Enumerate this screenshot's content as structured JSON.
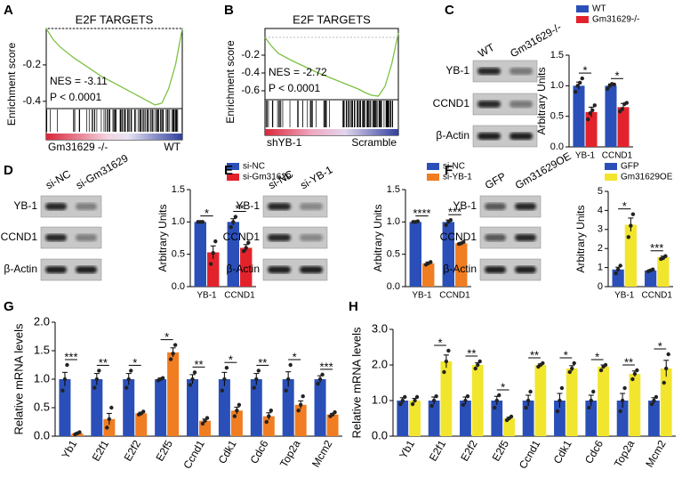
{
  "chart_data": [
    {
      "panel": "A",
      "type": "line",
      "title": "E2F TARGETS",
      "ylabel": "Enrichment score",
      "annotations": [
        "NES = -3.11",
        "P < 0.0001"
      ],
      "left_label": "Gm31629 -/-",
      "right_label": "WT",
      "color": "#7cc242",
      "x": [
        0,
        5,
        10,
        20,
        30,
        40,
        50,
        60,
        70,
        75,
        80,
        85,
        90,
        95,
        100
      ],
      "values": [
        0,
        -0.06,
        -0.1,
        -0.16,
        -0.21,
        -0.26,
        -0.3,
        -0.34,
        -0.38,
        -0.4,
        -0.42,
        -0.41,
        -0.33,
        -0.2,
        0
      ],
      "xlim": [
        0,
        100
      ],
      "ylim": [
        -0.44,
        0
      ],
      "yticks": [
        -0.2,
        -0.4
      ]
    },
    {
      "panel": "B",
      "type": "line",
      "title": "E2F TARGETS",
      "ylabel": "Enrichment score",
      "annotations": [
        "NES = -2.72",
        "P < 0.0001"
      ],
      "left_label": "shYB-1",
      "right_label": "Scramble",
      "color": "#7cc242",
      "x": [
        0,
        5,
        10,
        20,
        30,
        40,
        50,
        60,
        70,
        75,
        80,
        85,
        90,
        95,
        100
      ],
      "values": [
        0,
        -0.1,
        -0.18,
        -0.26,
        -0.33,
        -0.4,
        -0.46,
        -0.52,
        -0.58,
        -0.62,
        -0.65,
        -0.66,
        -0.55,
        -0.3,
        0.05
      ],
      "xlim": [
        0,
        100
      ],
      "ylim": [
        -0.7,
        0.1
      ],
      "yticks": [
        -0.2,
        -0.4,
        -0.6
      ]
    },
    {
      "panel": "C",
      "type": "bar",
      "ylabel": "Arbitrary Units",
      "blot": {
        "columns": [
          "WT",
          "Gm31629-/-"
        ],
        "rows": [
          "YB-1",
          "CCND1",
          "β-Actin"
        ]
      },
      "categories": [
        "YB-1",
        "CCND1"
      ],
      "sig": [
        "*",
        "*"
      ],
      "ylim": [
        0,
        1.5
      ],
      "yticks": [
        {
          "value": 0,
          "label": "0.0"
        },
        0.5,
        {
          "value": 1,
          "label": "1.0"
        },
        1.5
      ],
      "series": [
        {
          "name": "WT",
          "color": "#2a4fb8",
          "values": [
            1.0,
            1.0
          ],
          "errors": [
            0.06,
            0.03
          ],
          "points": [
            [
              0.9,
              1.0,
              1.05,
              1.12
            ],
            [
              0.95,
              1.0,
              1.03,
              1.02
            ]
          ]
        },
        {
          "name": "Gm31629-/-",
          "color": "#e3232b",
          "values": [
            0.57,
            0.65
          ],
          "errors": [
            0.08,
            0.06
          ],
          "points": [
            [
              0.45,
              0.55,
              0.6,
              0.68
            ],
            [
              0.58,
              0.62,
              0.7,
              0.72
            ]
          ]
        }
      ]
    },
    {
      "panel": "D",
      "type": "bar",
      "ylabel": "Arbitrary Units",
      "blot": {
        "columns": [
          "si-NC",
          "si-Gm31629"
        ],
        "rows": [
          "YB-1",
          "CCND1",
          "β-Actin"
        ]
      },
      "categories": [
        "YB-1",
        "CCND1"
      ],
      "sig": [
        "*",
        "**"
      ],
      "ylim": [
        0,
        1.5
      ],
      "yticks": [
        {
          "value": 0,
          "label": "0.0"
        },
        0.5,
        {
          "value": 1,
          "label": "1.0"
        },
        1.5
      ],
      "series": [
        {
          "name": "si-NC",
          "color": "#2a4fb8",
          "values": [
            1.0,
            1.0
          ],
          "errors": [
            0.01,
            0.05
          ],
          "points": [
            [
              1.0,
              1.0,
              1.0
            ],
            [
              0.92,
              1.0,
              1.08
            ]
          ]
        },
        {
          "name": "si-Gm31629",
          "color": "#e3232b",
          "values": [
            0.53,
            0.6
          ],
          "errors": [
            0.1,
            0.05
          ],
          "points": [
            [
              0.35,
              0.52,
              0.7
            ],
            [
              0.55,
              0.6,
              0.68
            ]
          ]
        }
      ]
    },
    {
      "panel": "E",
      "type": "bar",
      "ylabel": "Arbitrary Units",
      "blot": {
        "columns": [
          "si-NC",
          "si-YB-1"
        ],
        "rows": [
          "YB-1",
          "CCND1",
          "β-Actin"
        ]
      },
      "categories": [
        "YB-1",
        "CCND1"
      ],
      "sig": [
        "****",
        "***"
      ],
      "ylim": [
        0,
        1.5
      ],
      "yticks": [
        {
          "value": 0,
          "label": "0.0"
        },
        0.5,
        {
          "value": 1,
          "label": "1.0"
        },
        1.5
      ],
      "series": [
        {
          "name": "si-NC",
          "color": "#2a4fb8",
          "values": [
            1.0,
            1.0
          ],
          "errors": [
            0.01,
            0.03
          ],
          "points": [
            [
              1.0,
              1.0,
              1.01
            ],
            [
              0.95,
              1.0,
              1.03
            ]
          ]
        },
        {
          "name": "si-YB-1",
          "color": "#f07d22",
          "values": [
            0.36,
            0.67
          ],
          "errors": [
            0.02,
            0.01
          ],
          "points": [
            [
              0.34,
              0.36,
              0.38
            ],
            [
              0.66,
              0.67,
              0.69
            ]
          ]
        }
      ]
    },
    {
      "panel": "F",
      "type": "bar",
      "ylabel": "Arbitrary Units",
      "blot": {
        "columns": [
          "GFP",
          "Gm31629OE"
        ],
        "rows": [
          "YB-1",
          "CCND1",
          "β-Actin"
        ]
      },
      "categories": [
        "YB-1",
        "CCND1"
      ],
      "sig": [
        "*",
        "***"
      ],
      "ylim": [
        0,
        5
      ],
      "yticks": [
        0,
        1,
        2,
        3,
        4,
        5
      ],
      "series": [
        {
          "name": "GFP",
          "color": "#2a4fb8",
          "values": [
            0.9,
            0.85
          ],
          "errors": [
            0.12,
            0.04
          ],
          "points": [
            [
              0.7,
              0.9,
              1.1
            ],
            [
              0.8,
              0.85,
              0.9
            ]
          ]
        },
        {
          "name": "Gm31629OE",
          "color": "#f2e52e",
          "values": [
            3.25,
            1.55
          ],
          "errors": [
            0.35,
            0.05
          ],
          "points": [
            [
              2.6,
              3.2,
              3.8
            ],
            [
              1.45,
              1.5,
              1.6
            ]
          ]
        }
      ]
    },
    {
      "panel": "G",
      "type": "bar",
      "ylabel": "Relative mRNA levels",
      "categories": [
        "Yb1",
        "E2f1",
        "E2f2",
        "E2f5",
        "Ccnd1",
        "Cdk1",
        "Cdc6",
        "Top2a",
        "Mcm2"
      ],
      "sig": [
        "***",
        "**",
        "*",
        "*",
        "**",
        "*",
        "**",
        "*",
        "***"
      ],
      "ylim": [
        0,
        2
      ],
      "yticks": [
        {
          "value": 0,
          "label": "0.0"
        },
        0.5,
        {
          "value": 1,
          "label": "1.0"
        },
        1.5,
        {
          "value": 2,
          "label": "2.0"
        }
      ],
      "series": [
        {
          "color": "#2a4fb8",
          "values": [
            1.0,
            1.0,
            1.0,
            1.0,
            1.0,
            1.0,
            1.0,
            1.0,
            1.0
          ],
          "errors": [
            0.12,
            0.1,
            0.1,
            0.02,
            0.08,
            0.12,
            0.1,
            0.13,
            0.06
          ],
          "points": [
            [
              0.8,
              1.0,
              1.25
            ],
            [
              0.85,
              1.0,
              1.15
            ],
            [
              0.85,
              1.0,
              1.15
            ],
            [
              0.98,
              1.0,
              1.02
            ],
            [
              0.9,
              1.0,
              1.12
            ],
            [
              0.8,
              1.0,
              1.2
            ],
            [
              0.85,
              1.0,
              1.15
            ],
            [
              0.8,
              1.0,
              1.25
            ],
            [
              0.92,
              1.0,
              1.08
            ]
          ]
        },
        {
          "color": "#f07d22",
          "values": [
            0.05,
            0.3,
            0.4,
            1.47,
            0.27,
            0.45,
            0.35,
            0.55,
            0.38
          ],
          "errors": [
            0.01,
            0.1,
            0.02,
            0.08,
            0.03,
            0.06,
            0.06,
            0.07,
            0.02
          ],
          "points": [
            [
              0.03,
              0.05,
              0.07
            ],
            [
              0.15,
              0.3,
              0.5
            ],
            [
              0.38,
              0.4,
              0.43
            ],
            [
              1.35,
              1.45,
              1.6
            ],
            [
              0.22,
              0.27,
              0.32
            ],
            [
              0.35,
              0.45,
              0.55
            ],
            [
              0.25,
              0.35,
              0.45
            ],
            [
              0.45,
              0.55,
              0.7
            ],
            [
              0.35,
              0.38,
              0.42
            ]
          ]
        }
      ]
    },
    {
      "panel": "H",
      "type": "bar",
      "ylabel": "Relative mRNA levels",
      "categories": [
        "Yb1",
        "E2f1",
        "E2f2",
        "E2f5",
        "Ccnd1",
        "Cdk1",
        "Cdc6",
        "Top2a",
        "Mcm2"
      ],
      "sig": [
        null,
        "*",
        "**",
        "*",
        "**",
        "*",
        "*",
        "**",
        "*"
      ],
      "ylim": [
        0,
        3
      ],
      "yticks": [
        {
          "value": 0,
          "label": "0.0"
        },
        {
          "value": 1,
          "label": "1.0"
        },
        {
          "value": 2,
          "label": "2.0"
        },
        {
          "value": 3,
          "label": "3.0"
        }
      ],
      "series": [
        {
          "color": "#2a4fb8",
          "values": [
            1.0,
            1.0,
            1.0,
            1.0,
            1.0,
            1.0,
            1.0,
            1.0,
            1.0
          ],
          "errors": [
            0.08,
            0.1,
            0.1,
            0.12,
            0.15,
            0.2,
            0.15,
            0.2,
            0.08
          ],
          "points": [
            [
              0.9,
              1.0,
              1.1
            ],
            [
              0.85,
              1.0,
              1.12
            ],
            [
              0.88,
              1.0,
              1.12
            ],
            [
              0.8,
              1.0,
              1.15
            ],
            [
              0.8,
              1.0,
              1.25
            ],
            [
              0.7,
              1.0,
              1.35
            ],
            [
              0.8,
              1.0,
              1.25
            ],
            [
              0.7,
              1.0,
              1.35
            ],
            [
              0.9,
              1.0,
              1.1
            ]
          ]
        },
        {
          "color": "#f2e52e",
          "values": [
            1.0,
            2.1,
            2.0,
            0.5,
            2.0,
            1.9,
            1.95,
            1.75,
            1.9
          ],
          "errors": [
            0.06,
            0.18,
            0.06,
            0.03,
            0.03,
            0.08,
            0.05,
            0.08,
            0.23
          ],
          "points": [
            [
              0.9,
              1.0,
              1.1
            ],
            [
              1.8,
              2.1,
              2.4
            ],
            [
              1.9,
              2.0,
              2.1
            ],
            [
              0.45,
              0.5,
              0.55
            ],
            [
              1.95,
              2.0,
              2.05
            ],
            [
              1.8,
              1.9,
              2.05
            ],
            [
              1.85,
              1.95,
              2.0
            ],
            [
              1.6,
              1.75,
              1.85
            ],
            [
              1.5,
              1.9,
              2.3
            ]
          ]
        }
      ]
    }
  ]
}
